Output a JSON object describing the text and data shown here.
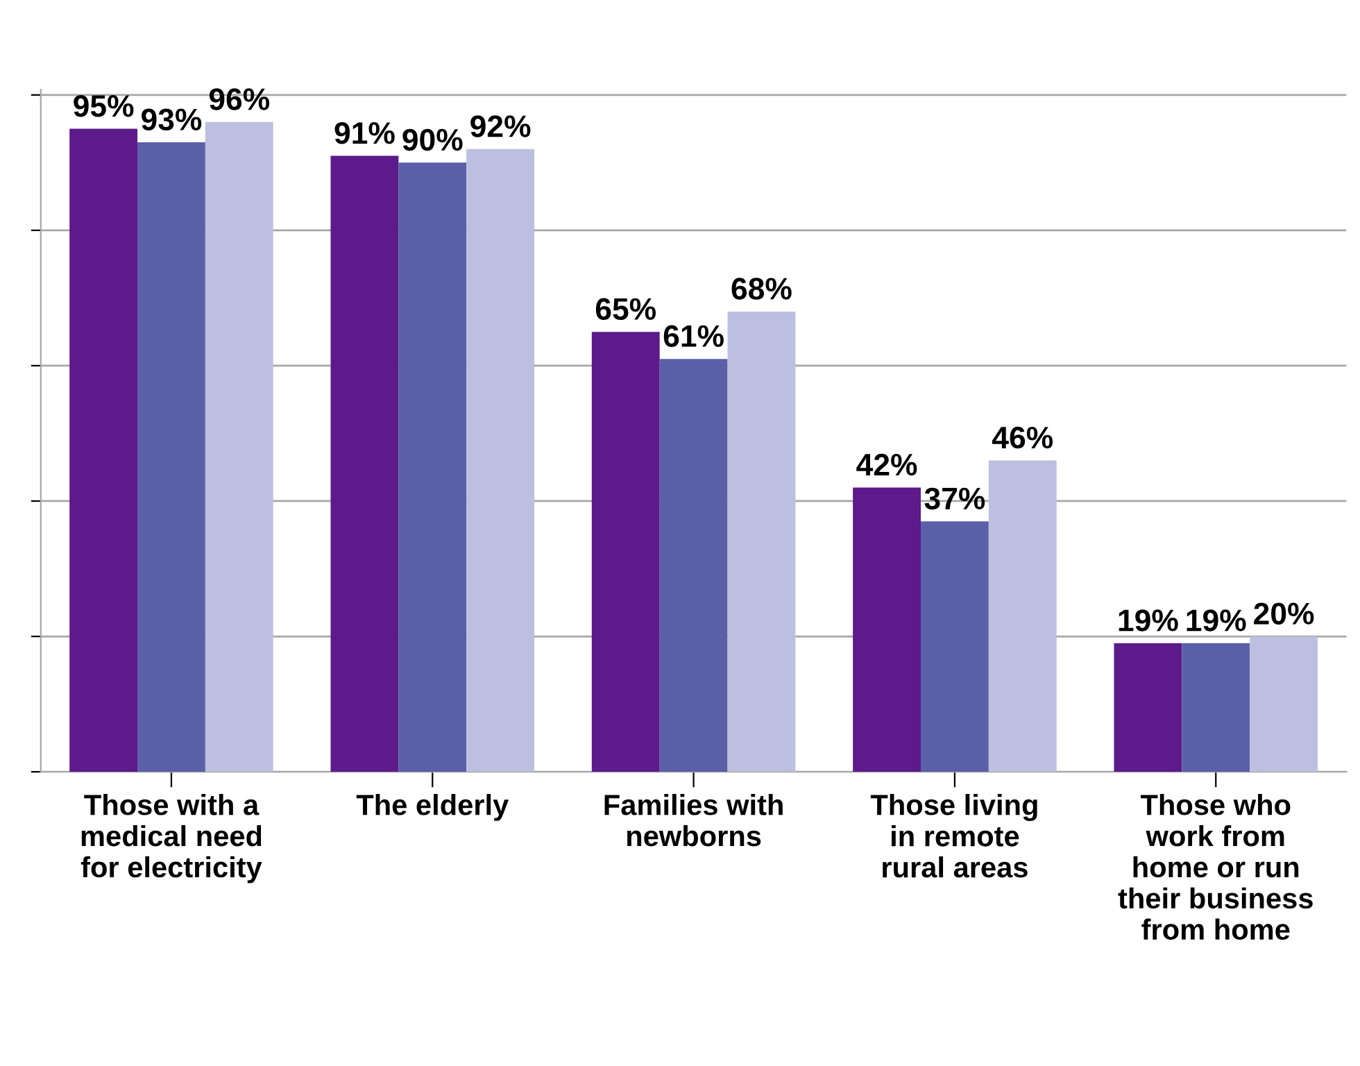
{
  "chart_data": {
    "type": "bar",
    "categories": [
      "Those with a\nmedical need\nfor electricity",
      "The elderly",
      "Families with\nnewborns",
      "Those living\nin remote\nrural areas",
      "Those who\nwork from\nhome or run\ntheir business\nfrom home"
    ],
    "series": [
      {
        "color": "#5c1a8a",
        "values": [
          95,
          91,
          65,
          42,
          19
        ],
        "value_labels": [
          "95%",
          "91%",
          "65%",
          "42%",
          "19%"
        ]
      },
      {
        "color": "#5a5fa8",
        "values": [
          93,
          90,
          61,
          37,
          19
        ],
        "value_labels": [
          "93%",
          "90%",
          "61%",
          "37%",
          "19%"
        ]
      },
      {
        "color": "#bcbfdf",
        "values": [
          96,
          92,
          68,
          46,
          20
        ],
        "value_labels": [
          "96%",
          "92%",
          "68%",
          "46%",
          "20%"
        ]
      }
    ],
    "grid": "y",
    "tick_labels": "x"
  }
}
